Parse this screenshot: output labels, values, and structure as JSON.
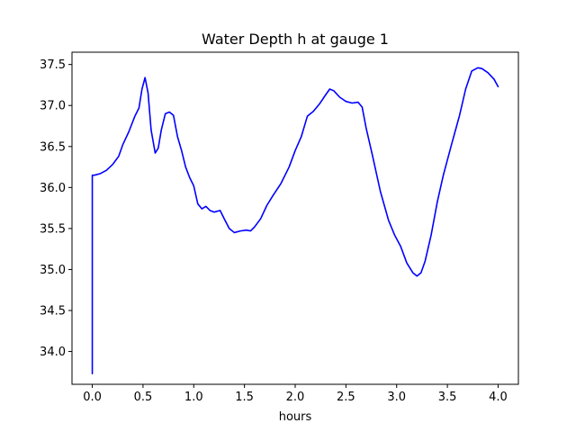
{
  "chart_data": {
    "type": "line",
    "title": "Water Depth h at gauge 1",
    "xlabel": "hours",
    "ylabel": "",
    "xlim": [
      -0.2,
      4.2
    ],
    "ylim": [
      33.6,
      37.65
    ],
    "xticks": [
      0.0,
      0.5,
      1.0,
      1.5,
      2.0,
      2.5,
      3.0,
      3.5,
      4.0
    ],
    "xtick_labels": [
      "0.0",
      "0.5",
      "1.0",
      "1.5",
      "2.0",
      "2.5",
      "3.0",
      "3.5",
      "4.0"
    ],
    "yticks": [
      34.0,
      34.5,
      35.0,
      35.5,
      36.0,
      36.5,
      37.0,
      37.5
    ],
    "ytick_labels": [
      "34.0",
      "34.5",
      "35.0",
      "35.5",
      "36.0",
      "36.5",
      "37.0",
      "37.5"
    ],
    "grid": false,
    "series": [
      {
        "color": "#0000ff",
        "x": [
          0.0,
          0.0,
          0.02,
          0.08,
          0.14,
          0.2,
          0.26,
          0.3,
          0.36,
          0.42,
          0.46,
          0.49,
          0.52,
          0.55,
          0.58,
          0.62,
          0.65,
          0.68,
          0.72,
          0.76,
          0.8,
          0.84,
          0.88,
          0.92,
          0.96,
          1.0,
          1.04,
          1.08,
          1.12,
          1.16,
          1.2,
          1.26,
          1.3,
          1.35,
          1.4,
          1.46,
          1.52,
          1.56,
          1.6,
          1.66,
          1.72,
          1.78,
          1.86,
          1.94,
          2.0,
          2.06,
          2.12,
          2.18,
          2.24,
          2.3,
          2.34,
          2.38,
          2.44,
          2.5,
          2.56,
          2.62,
          2.66,
          2.7,
          2.76,
          2.84,
          2.92,
          2.98,
          3.04,
          3.1,
          3.16,
          3.2,
          3.24,
          3.28,
          3.34,
          3.4,
          3.46,
          3.54,
          3.62,
          3.68,
          3.74,
          3.8,
          3.84,
          3.9,
          3.96,
          4.0
        ],
        "y": [
          33.73,
          36.15,
          36.15,
          36.17,
          36.21,
          36.28,
          36.38,
          36.52,
          36.68,
          36.87,
          36.97,
          37.2,
          37.34,
          37.15,
          36.7,
          36.42,
          36.48,
          36.7,
          36.9,
          36.92,
          36.88,
          36.62,
          36.45,
          36.25,
          36.12,
          36.02,
          35.8,
          35.74,
          35.77,
          35.72,
          35.7,
          35.72,
          35.62,
          35.5,
          35.45,
          35.47,
          35.48,
          35.47,
          35.52,
          35.62,
          35.78,
          35.9,
          36.05,
          36.25,
          36.45,
          36.62,
          36.87,
          36.93,
          37.02,
          37.13,
          37.2,
          37.18,
          37.1,
          37.05,
          37.03,
          37.04,
          36.98,
          36.72,
          36.4,
          35.95,
          35.6,
          35.42,
          35.28,
          35.08,
          34.96,
          34.92,
          34.96,
          35.1,
          35.42,
          35.82,
          36.15,
          36.52,
          36.88,
          37.2,
          37.42,
          37.46,
          37.45,
          37.4,
          37.32,
          37.23
        ]
      }
    ]
  }
}
